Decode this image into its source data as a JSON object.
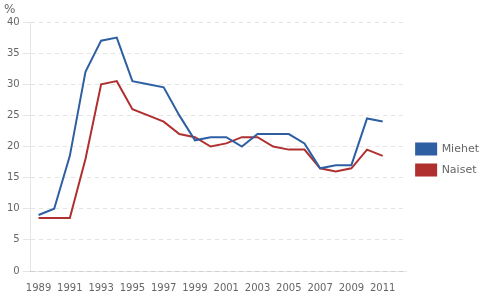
{
  "chart_data": {
    "type": "line",
    "ylabel": "%",
    "x": [
      1989,
      1990,
      1991,
      1992,
      1993,
      1994,
      1995,
      1996,
      1997,
      1998,
      1999,
      2000,
      2001,
      2002,
      2003,
      2004,
      2005,
      2006,
      2007,
      2008,
      2009,
      2010,
      2011
    ],
    "series": [
      {
        "name": "Miehet",
        "color": "#2e5fa3",
        "values": [
          9.0,
          10.0,
          18.5,
          32.0,
          37.0,
          37.5,
          30.5,
          30.0,
          29.5,
          25.0,
          21.0,
          21.5,
          21.5,
          20.0,
          22.0,
          22.0,
          22.0,
          20.5,
          16.5,
          17.0,
          17.0,
          24.5,
          24.0
        ]
      },
      {
        "name": "Naiset",
        "color": "#b03030",
        "values": [
          8.5,
          8.5,
          8.5,
          18.0,
          30.0,
          30.5,
          26.0,
          25.0,
          24.0,
          22.0,
          21.5,
          20.0,
          20.5,
          21.5,
          21.5,
          20.0,
          19.5,
          19.5,
          16.5,
          16.0,
          16.5,
          19.5,
          18.5
        ]
      }
    ],
    "xlim": [
      1988.5,
      2012.5
    ],
    "xticks": [
      1989,
      1991,
      1993,
      1995,
      1997,
      1999,
      2001,
      2003,
      2005,
      2007,
      2009,
      2011
    ],
    "ylim": [
      0,
      40
    ],
    "yticks": [
      0,
      5,
      10,
      15,
      20,
      25,
      30,
      35,
      40
    ],
    "grid": "y",
    "legend": "right"
  }
}
